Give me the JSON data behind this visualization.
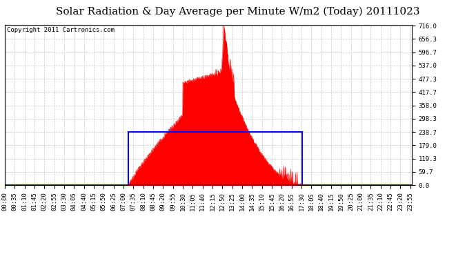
{
  "title": "Solar Radiation & Day Average per Minute W/m2 (Today) 20111023",
  "copyright": "Copyright 2011 Cartronics.com",
  "bg_color": "#ffffff",
  "plot_bg_color": "#ffffff",
  "grid_color": "#c0c0c0",
  "fill_color": "#ff0000",
  "line_color": "#ff0000",
  "box_color": "#0000ff",
  "avg_line_color": "#0000ff",
  "ymin": 0.0,
  "ymax": 716.0,
  "yticks": [
    0.0,
    59.7,
    119.3,
    179.0,
    238.7,
    298.3,
    358.0,
    417.7,
    477.3,
    537.0,
    596.7,
    656.3,
    716.0
  ],
  "n_minutes": 1440,
  "sunrise_minute": 438,
  "sunset_minute": 1052,
  "day_avg": 238.7,
  "peak_minute": 775,
  "peak_value": 716.0,
  "title_fontsize": 11,
  "copyright_fontsize": 6.5,
  "tick_fontsize": 6.5,
  "tick_interval": 35
}
